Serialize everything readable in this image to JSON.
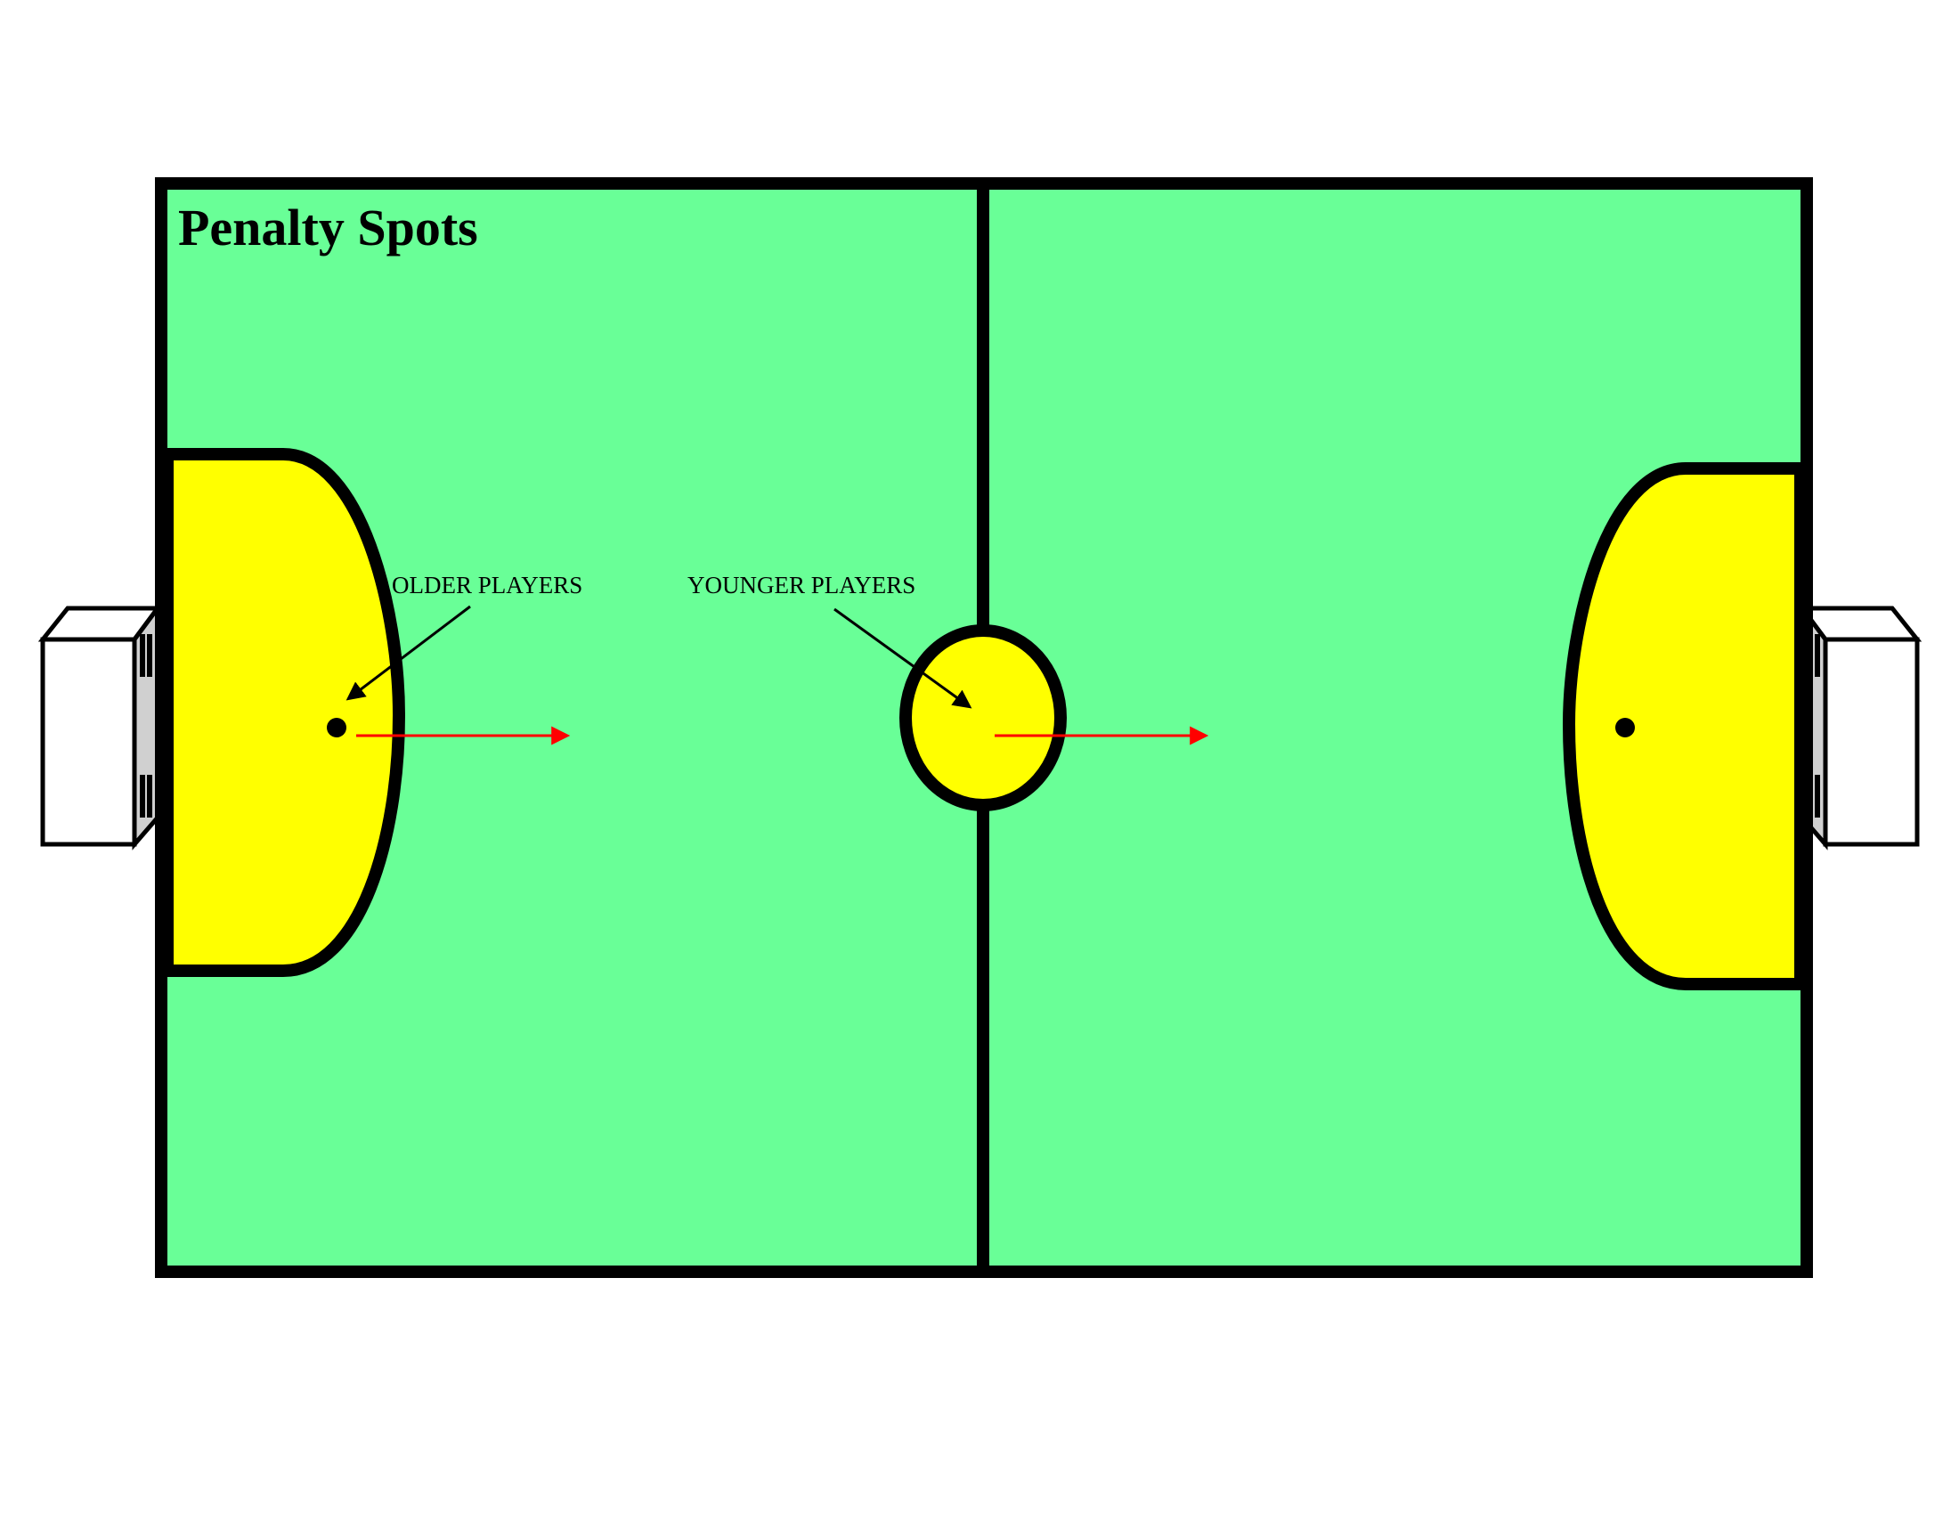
{
  "title": "Penalty Spots",
  "labels": {
    "older_players": "OLDER PLAYERS",
    "younger_players": "YOUNGER PLAYERS"
  },
  "colors": {
    "field": "#69FF97",
    "penalty_area": "#FFFF00",
    "line": "#000000",
    "direction_arrow": "#FF0000",
    "goal": "#FFFFFF",
    "goal_side": "#D0D0D0"
  },
  "icons": {
    "goal_left": "goal-icon",
    "goal_right": "goal-icon"
  }
}
